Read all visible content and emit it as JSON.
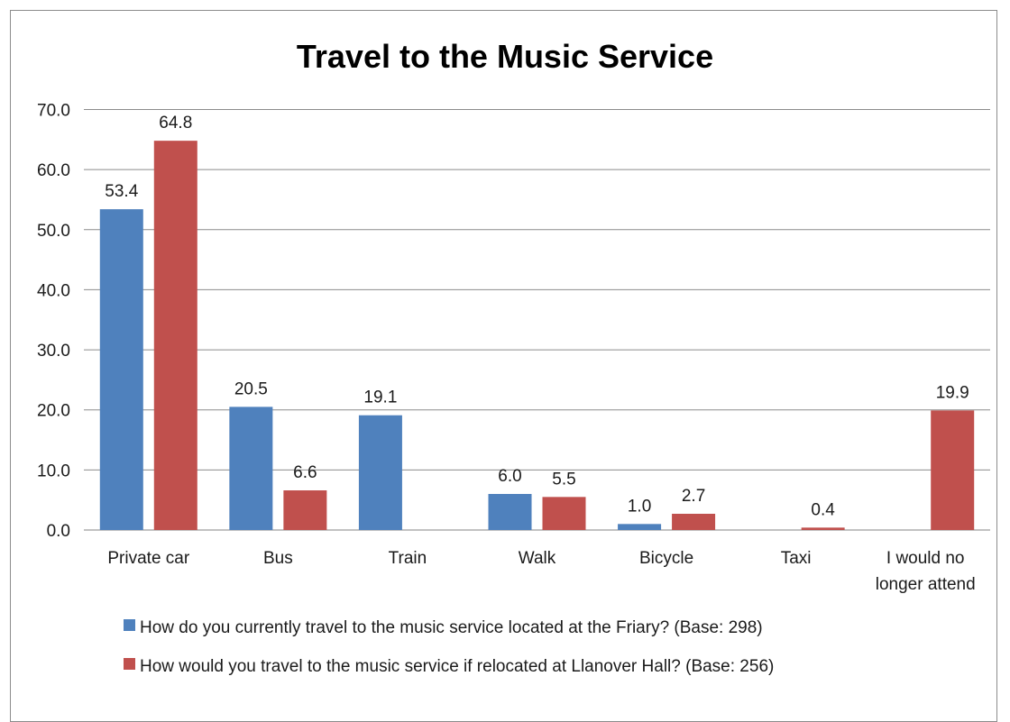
{
  "chart_data": {
    "type": "bar",
    "title": "Travel to the Music Service",
    "xlabel": "",
    "ylabel": "",
    "ylim": [
      0,
      70
    ],
    "yticks": [
      "0.0",
      "10.0",
      "20.0",
      "30.0",
      "40.0",
      "50.0",
      "60.0",
      "70.0"
    ],
    "grid": true,
    "legend_position": "bottom",
    "categories": [
      [
        "Private car"
      ],
      [
        "Bus"
      ],
      [
        "Train"
      ],
      [
        "Walk"
      ],
      [
        "Bicycle"
      ],
      [
        "Taxi"
      ],
      [
        "I would no",
        "longer attend"
      ]
    ],
    "series": [
      {
        "name": "How do you currently travel to the music service located at the Friary? (Base: 298)",
        "color": "#4f81bd",
        "values": [
          53.4,
          20.5,
          19.1,
          6.0,
          1.0,
          null,
          null
        ],
        "labels": [
          "53.4",
          "20.5",
          "19.1",
          "6.0",
          "1.0",
          "",
          ""
        ]
      },
      {
        "name": "How would you travel to the music service if relocated at Llanover Hall? (Base: 256)",
        "color": "#c0504d",
        "values": [
          64.8,
          6.6,
          null,
          5.5,
          2.7,
          0.4,
          19.9
        ],
        "labels": [
          "64.8",
          "6.6",
          "",
          "5.5",
          "2.7",
          "0.4",
          "19.9"
        ]
      }
    ]
  }
}
